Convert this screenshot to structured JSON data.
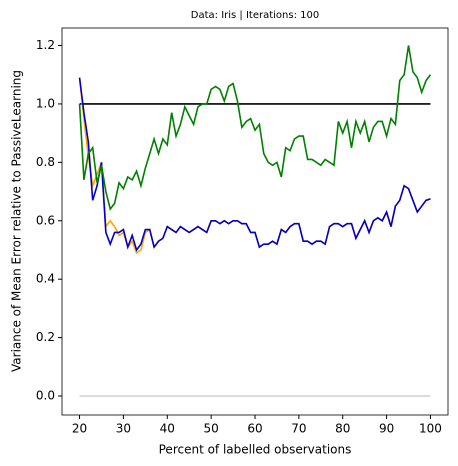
{
  "chart_data": {
    "type": "line",
    "title": "Data: Iris | Iterations: 100",
    "xlabel": "Percent of labelled observations",
    "ylabel": "Variance of Mean Error relative to PassiveLearning",
    "x": [
      20,
      21,
      22,
      23,
      24,
      25,
      26,
      27,
      28,
      29,
      30,
      31,
      32,
      33,
      34,
      35,
      36,
      37,
      38,
      39,
      40,
      41,
      42,
      43,
      44,
      45,
      46,
      47,
      48,
      49,
      50,
      51,
      52,
      53,
      54,
      55,
      56,
      57,
      58,
      59,
      60,
      61,
      62,
      63,
      64,
      65,
      66,
      67,
      68,
      69,
      70,
      71,
      72,
      73,
      74,
      75,
      76,
      77,
      78,
      79,
      80,
      81,
      82,
      83,
      84,
      85,
      86,
      87,
      88,
      89,
      90,
      91,
      92,
      93,
      94,
      95,
      96,
      97,
      98,
      99,
      100
    ],
    "series": [
      {
        "color": "#d3d3d3",
        "x": [
          20,
          100
        ],
        "values": [
          0,
          0
        ]
      },
      {
        "color": "#000000",
        "x": [
          20,
          100
        ],
        "values": [
          1,
          1
        ]
      },
      {
        "color": "#ffa500",
        "values": [
          1.09,
          0.95,
          0.82,
          0.72,
          0.76,
          0.8,
          0.58,
          0.6,
          0.58,
          0.55,
          0.56,
          0.51,
          0.53,
          0.49,
          0.5,
          0.56,
          0.57,
          0.51,
          0.53,
          0.54,
          0.58,
          0.57,
          0.56,
          0.58,
          0.57,
          0.56,
          0.57,
          0.58,
          0.57,
          0.56,
          0.6,
          0.6,
          0.59,
          0.6,
          0.59,
          0.6,
          0.6,
          0.59,
          0.59,
          0.56,
          0.56,
          0.51,
          0.52,
          0.52,
          0.53,
          0.52,
          0.57,
          0.56,
          0.58,
          0.59,
          0.59,
          0.53,
          0.53,
          0.52,
          0.53,
          0.53,
          0.52,
          0.58,
          0.59,
          0.59,
          0.58,
          0.59,
          0.59,
          0.54,
          0.57,
          0.6,
          0.56,
          0.6,
          0.61,
          0.6,
          0.63,
          0.58,
          0.65,
          0.67,
          0.72,
          0.71,
          0.67,
          0.63,
          0.65,
          0.67,
          0.675
        ]
      },
      {
        "color": "#0000cd",
        "values": [
          1.09,
          0.97,
          0.87,
          0.67,
          0.72,
          0.8,
          0.56,
          0.52,
          0.56,
          0.56,
          0.57,
          0.51,
          0.55,
          0.5,
          0.52,
          0.57,
          0.57,
          0.51,
          0.53,
          0.54,
          0.58,
          0.57,
          0.56,
          0.58,
          0.57,
          0.56,
          0.57,
          0.58,
          0.57,
          0.56,
          0.6,
          0.6,
          0.59,
          0.6,
          0.59,
          0.6,
          0.6,
          0.59,
          0.59,
          0.56,
          0.56,
          0.51,
          0.52,
          0.52,
          0.53,
          0.52,
          0.57,
          0.56,
          0.58,
          0.59,
          0.59,
          0.53,
          0.53,
          0.52,
          0.53,
          0.53,
          0.52,
          0.58,
          0.59,
          0.59,
          0.58,
          0.59,
          0.59,
          0.54,
          0.57,
          0.6,
          0.56,
          0.6,
          0.61,
          0.6,
          0.63,
          0.58,
          0.65,
          0.67,
          0.72,
          0.71,
          0.67,
          0.63,
          0.65,
          0.67,
          0.675
        ]
      },
      {
        "color": "#008000",
        "values": [
          1.0,
          0.74,
          0.83,
          0.85,
          0.73,
          0.79,
          0.7,
          0.64,
          0.66,
          0.73,
          0.71,
          0.75,
          0.74,
          0.77,
          0.72,
          0.78,
          0.83,
          0.88,
          0.83,
          0.88,
          0.86,
          0.97,
          0.89,
          0.93,
          0.99,
          0.96,
          0.93,
          0.99,
          1.0,
          1.0,
          1.05,
          1.06,
          1.05,
          1.01,
          1.06,
          1.07,
          1.01,
          0.92,
          0.94,
          0.95,
          0.91,
          0.93,
          0.83,
          0.8,
          0.79,
          0.8,
          0.75,
          0.85,
          0.84,
          0.88,
          0.89,
          0.89,
          0.81,
          0.81,
          0.8,
          0.79,
          0.81,
          0.8,
          0.79,
          0.94,
          0.9,
          0.94,
          0.85,
          0.94,
          0.9,
          0.94,
          0.87,
          0.92,
          0.94,
          0.94,
          0.89,
          0.95,
          0.93,
          1.08,
          1.1,
          1.2,
          1.11,
          1.09,
          1.04,
          1.08,
          1.1
        ]
      }
    ],
    "xlim": [
      16,
      104
    ],
    "ylim": [
      -0.065,
      1.26
    ],
    "xticks": [
      20,
      30,
      40,
      50,
      60,
      70,
      80,
      90,
      100
    ],
    "yticks": [
      {
        "value": 0,
        "label": "0.0"
      },
      0.2,
      0.4,
      0.6,
      0.8,
      {
        "value": 1,
        "label": "1.0"
      },
      1.2
    ]
  }
}
